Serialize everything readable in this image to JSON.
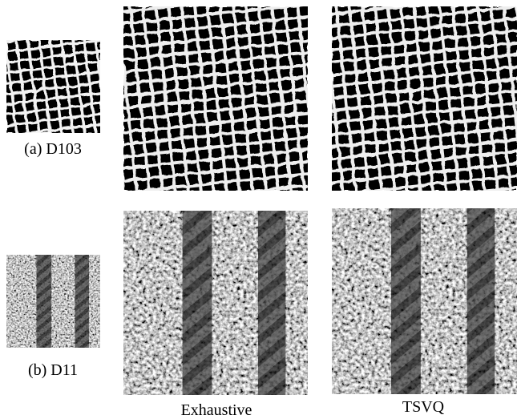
{
  "panels": [
    {
      "label": "(a) D103"
    },
    {
      "label": "(b) D11"
    }
  ],
  "columns": [
    "Exhaustive",
    "TSVQ"
  ]
}
